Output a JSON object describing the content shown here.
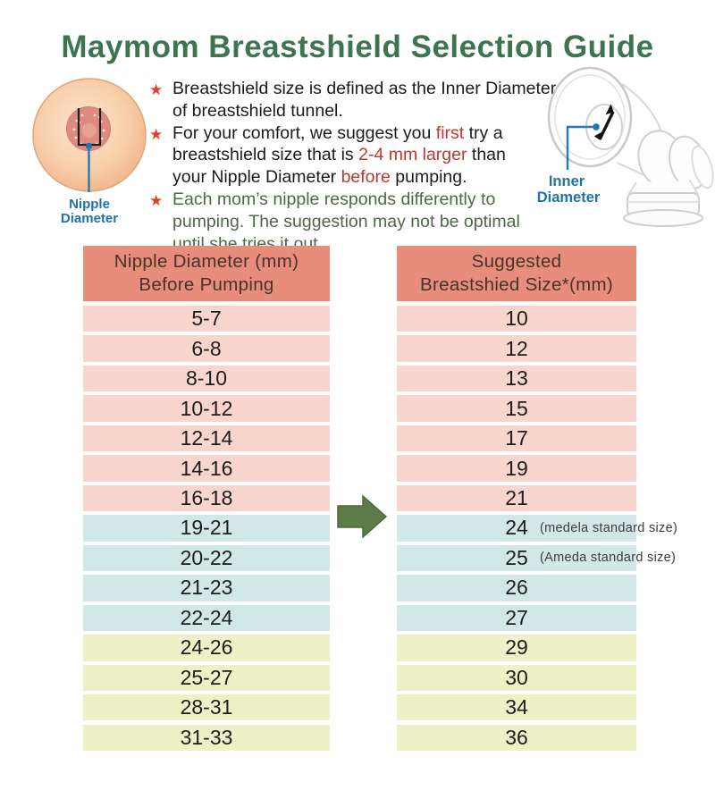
{
  "title": "Maymom Breastshield Selection Guide",
  "icons": {
    "star": "★",
    "arrow": "right-block-arrow",
    "inner_diameter_arrow": "double-headed-diagonal-arrow"
  },
  "colors": {
    "title_green": "#3e7450",
    "star_red": "#e2402c",
    "accent_red": "#bb3a2c",
    "bullet_green": "#4f6847",
    "label_blue": "#1e72ad",
    "header_bg": "#e88d7b",
    "row_pink": "#f9d6cd",
    "row_blue": "#d2e8e6",
    "row_yellow": "#eef0c6",
    "arrow_green": "#5c7c48"
  },
  "diagrams": {
    "nipple_label_line1": "Nipple",
    "nipple_label_line2": "Diameter",
    "inner_label_line1": "Inner",
    "inner_label_line2": "Diameter"
  },
  "bullets": [
    {
      "lines": [
        [
          {
            "t": "Breastshield size is defined as the Inner Diameter",
            "c": "dark"
          }
        ],
        [
          {
            "t": "of breastshield tunnel.",
            "c": "dark"
          }
        ]
      ]
    },
    {
      "lines": [
        [
          {
            "t": "For your comfort, we suggest you ",
            "c": "dark"
          },
          {
            "t": "first",
            "c": "red"
          },
          {
            "t": " try a",
            "c": "dark"
          }
        ],
        [
          {
            "t": "breastshield size that is ",
            "c": "dark"
          },
          {
            "t": "2-4 mm larger",
            "c": "red"
          },
          {
            "t": " than",
            "c": "dark"
          }
        ],
        [
          {
            "t": "your Nipple Diameter ",
            "c": "dark"
          },
          {
            "t": "before",
            "c": "red"
          },
          {
            "t": " pumping.",
            "c": "dark"
          }
        ]
      ]
    },
    {
      "lines": [
        [
          {
            "t": "Each mom’s nipple responds differently to",
            "c": "green"
          }
        ],
        [
          {
            "t": "pumping. The suggestion may not be optimal",
            "c": "green"
          }
        ],
        [
          {
            "t": "until she tries it out.",
            "c": "green"
          }
        ]
      ]
    }
  ],
  "table": {
    "left": {
      "header_line1": "Nipple Diameter (mm)",
      "header_line2": "Before Pumping",
      "rows": [
        {
          "range": "5-7",
          "tone": "pink"
        },
        {
          "range": "6-8",
          "tone": "pink"
        },
        {
          "range": "8-10",
          "tone": "pink"
        },
        {
          "range": "10-12",
          "tone": "pink"
        },
        {
          "range": "12-14",
          "tone": "pink"
        },
        {
          "range": "14-16",
          "tone": "pink"
        },
        {
          "range": "16-18",
          "tone": "pink"
        },
        {
          "range": "19-21",
          "tone": "blue"
        },
        {
          "range": "20-22",
          "tone": "blue"
        },
        {
          "range": "21-23",
          "tone": "blue"
        },
        {
          "range": "22-24",
          "tone": "blue"
        },
        {
          "range": "24-26",
          "tone": "yellow"
        },
        {
          "range": "25-27",
          "tone": "yellow"
        },
        {
          "range": "28-31",
          "tone": "yellow"
        },
        {
          "range": "31-33",
          "tone": "yellow"
        }
      ]
    },
    "right": {
      "header_line1": "Suggested",
      "header_line2": "Breastshied Size*(mm)",
      "rows": [
        {
          "value": "10",
          "tone": "pink",
          "note": ""
        },
        {
          "value": "12",
          "tone": "pink",
          "note": ""
        },
        {
          "value": "13",
          "tone": "pink",
          "note": ""
        },
        {
          "value": "15",
          "tone": "pink",
          "note": ""
        },
        {
          "value": "17",
          "tone": "pink",
          "note": ""
        },
        {
          "value": "19",
          "tone": "pink",
          "note": ""
        },
        {
          "value": "21",
          "tone": "pink",
          "note": ""
        },
        {
          "value": "24",
          "tone": "blue",
          "note": "(medela standard size)"
        },
        {
          "value": "25",
          "tone": "blue",
          "note": "(Ameda standard size)"
        },
        {
          "value": "26",
          "tone": "blue",
          "note": ""
        },
        {
          "value": "27",
          "tone": "blue",
          "note": ""
        },
        {
          "value": "29",
          "tone": "yellow",
          "note": ""
        },
        {
          "value": "30",
          "tone": "yellow",
          "note": ""
        },
        {
          "value": "34",
          "tone": "yellow",
          "note": ""
        },
        {
          "value": "36",
          "tone": "yellow",
          "note": ""
        }
      ]
    }
  }
}
